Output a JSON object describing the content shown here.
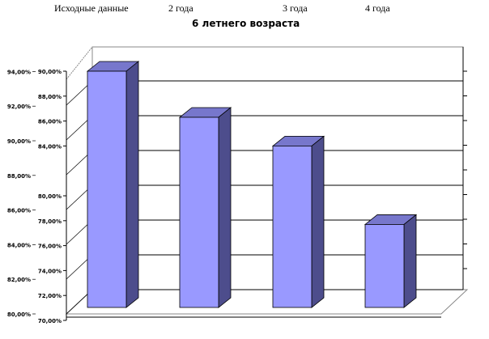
{
  "chart_data": {
    "type": "bar",
    "title": "6 летнего возраста",
    "categories": [
      "Исходные данные",
      "2 года",
      "3 года",
      "4 года"
    ],
    "values": [
      90.0,
      86.3,
      84.0,
      77.7
    ],
    "ylabel": "",
    "xlabel": "",
    "ylim": [
      70,
      90
    ],
    "y_ticks_primary": [
      "70,00%",
      "72,00%",
      "74,00%",
      "76,00%",
      "78,00%",
      "80,00%",
      "84,00%",
      "86,00%",
      "88,00%",
      "90,00%"
    ],
    "y_ticks_secondary": [
      "80,00%",
      "82,00%",
      "84,00%",
      "86,00%",
      "88,00%",
      "90,00%",
      "92,00%",
      "94,00%"
    ],
    "grid": true,
    "style": "3d-column",
    "colors": {
      "front": "#9999ff",
      "side": "#4d4d8c",
      "top": "#7777cc"
    }
  }
}
